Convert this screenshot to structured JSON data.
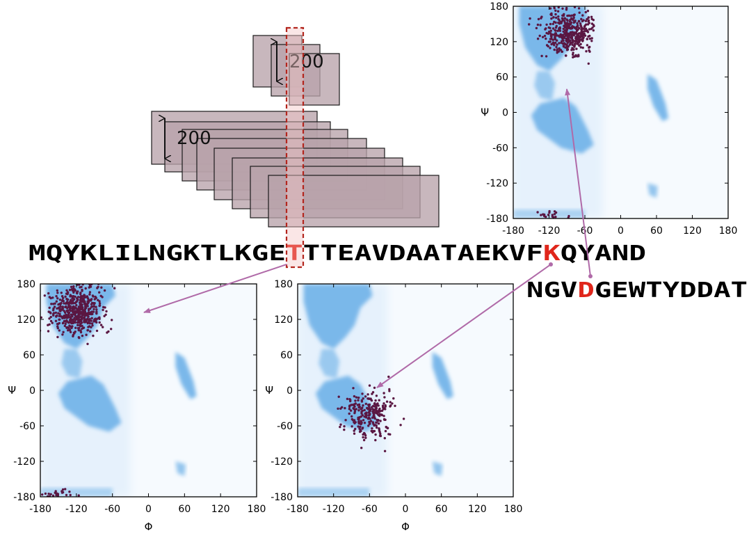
{
  "sequence": {
    "main_before": "MQYKLILNGKTLKGE",
    "main_highlight": "T",
    "main_middle": "TTEAVDAATAEKVF",
    "main_highlight2": "K",
    "main_after": "QYAND",
    "second_before": "NGV",
    "second_highlight": "D",
    "second_after": "GEWTYDDAT",
    "highlight_color": "#e0261b"
  },
  "windows": {
    "width_label_large": "200",
    "width_label_small": "200",
    "fill_color": "#b8a3ab",
    "marker_color": "#b3261e"
  },
  "colors": {
    "background_density": "#7ab8ea",
    "faint_density": "#e6f2fc",
    "points": "#5a1742",
    "arrows": "#b06aa8"
  },
  "chart_data": [
    {
      "type": "scatter",
      "title": "",
      "xlabel": "",
      "ylabel": "Ψ",
      "xlim": [
        -180,
        180
      ],
      "ylim": [
        -180,
        180
      ],
      "xticks": [
        "-180",
        "-120",
        "-60",
        "0",
        "60",
        "120",
        "180"
      ],
      "yticks": [
        "180",
        "120",
        "60",
        "0",
        "-60",
        "-120",
        "-180"
      ],
      "residue": "D",
      "clusters": [
        {
          "phi": -85,
          "psi": 135,
          "n": 420
        },
        {
          "phi": -120,
          "psi": -175,
          "n": 20
        }
      ]
    },
    {
      "type": "scatter",
      "title": "",
      "xlabel": "Φ",
      "ylabel": "Ψ",
      "xlim": [
        -180,
        180
      ],
      "ylim": [
        -180,
        180
      ],
      "xticks": [
        "-180",
        "-120",
        "-60",
        "0",
        "60",
        "120",
        "180"
      ],
      "yticks": [
        "180",
        "120",
        "60",
        "0",
        "-60",
        "-120",
        "-180"
      ],
      "residue": "T",
      "clusters": [
        {
          "phi": -120,
          "psi": 135,
          "n": 520
        },
        {
          "phi": -150,
          "psi": -175,
          "n": 25
        }
      ]
    },
    {
      "type": "scatter",
      "title": "",
      "xlabel": "Φ",
      "ylabel": "Ψ",
      "xlim": [
        -180,
        180
      ],
      "ylim": [
        -180,
        180
      ],
      "xticks": [
        "-180",
        "-120",
        "-60",
        "0",
        "60",
        "120",
        "180"
      ],
      "yticks": [
        "180",
        "120",
        "60",
        "0",
        "-60",
        "-120",
        "-180"
      ],
      "residue": "K",
      "clusters": [
        {
          "phi": -62,
          "psi": -40,
          "n": 260
        }
      ]
    }
  ]
}
